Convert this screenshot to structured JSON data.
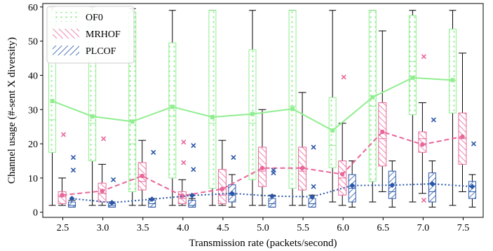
{
  "chart_data": {
    "type": "box",
    "title": "",
    "xlabel": "Transmission rate (packets/second)",
    "ylabel": "Channel usage (#-sent X diversity)",
    "ylim": [
      -1.5,
      61
    ],
    "yticks": [
      0,
      10,
      20,
      30,
      40,
      50,
      60
    ],
    "grid": false,
    "legend_position": "top-left",
    "categories": [
      "2.5",
      "3.0",
      "3.5",
      "4.0",
      "4.5",
      "5.0",
      "5.5",
      "6.0",
      "6.5",
      "7.0",
      "7.5"
    ],
    "series": [
      {
        "name": "OF0",
        "color": "#90ee90",
        "hatch": "dots",
        "marker": "square",
        "mean_line_style": "solid",
        "boxes": [
          {
            "whislo": 2,
            "q1": 17.5,
            "med": 27,
            "q3": 59,
            "whishi": 60
          },
          {
            "whislo": 2,
            "q1": 15,
            "med": 26,
            "q3": 59,
            "whishi": 60
          },
          {
            "whislo": 2,
            "q1": 6,
            "med": 20,
            "q3": 58.5,
            "whishi": 59.5
          },
          {
            "whislo": 2,
            "q1": 10,
            "med": 28,
            "q3": 49.5,
            "whishi": 59
          },
          {
            "whislo": 2,
            "q1": 7,
            "med": 26,
            "q3": 59,
            "whishi": 59
          },
          {
            "whislo": 2,
            "q1": 9.5,
            "med": 26,
            "q3": 47.5,
            "whishi": 59
          },
          {
            "whislo": 2,
            "q1": 7,
            "med": 31,
            "q3": 59,
            "whishi": 59
          },
          {
            "whislo": 3,
            "q1": 13,
            "med": 19.5,
            "q3": 33.5,
            "whishi": 59
          },
          {
            "whislo": 3,
            "q1": 9,
            "med": 31,
            "q3": 59,
            "whishi": 59
          },
          {
            "whislo": 3,
            "q1": 28.5,
            "med": 44,
            "q3": 57.5,
            "whishi": 59
          },
          {
            "whislo": 2,
            "q1": 29,
            "med": 38.5,
            "q3": 53.5,
            "whishi": 59
          }
        ],
        "means": [
          32.5,
          28,
          26.5,
          30.8,
          27.8,
          28.7,
          30.2,
          23.9,
          33.6,
          39.3,
          38.6
        ],
        "fliers": [
          [],
          [],
          [],
          [],
          [],
          [],
          [],
          [],
          [],
          [],
          []
        ]
      },
      {
        "name": "MRHOF",
        "color": "#e8679a",
        "hatch": "backslash",
        "marker": "circle",
        "mean_line_style": "dashed",
        "boxes": [
          {
            "whislo": 2,
            "q1": 2.5,
            "med": 4.5,
            "q3": 6,
            "whishi": 10
          },
          {
            "whislo": 2,
            "q1": 3,
            "med": 5.5,
            "q3": 8.5,
            "whishi": 14
          },
          {
            "whislo": 2,
            "q1": 6.5,
            "med": 9,
            "q3": 14.5,
            "whishi": 21
          },
          {
            "whislo": 2,
            "q1": 2.5,
            "med": 4,
            "q3": 6,
            "whishi": 9.5
          },
          {
            "whislo": 2,
            "q1": 2.5,
            "med": 5,
            "q3": 12.5,
            "whishi": 21
          },
          {
            "whislo": 2,
            "q1": 7.5,
            "med": 12,
            "q3": 19,
            "whishi": 30
          },
          {
            "whislo": 2,
            "q1": 6.5,
            "med": 12,
            "q3": 19,
            "whishi": 35
          },
          {
            "whislo": 2,
            "q1": 5,
            "med": 10,
            "q3": 15,
            "whishi": 26
          },
          {
            "whislo": 6,
            "q1": 13.5,
            "med": 21.5,
            "q3": 32,
            "whishi": 53
          },
          {
            "whislo": 5.5,
            "q1": 17.5,
            "med": 21.5,
            "q3": 23.5,
            "whishi": 32
          },
          {
            "whislo": 6,
            "q1": 14,
            "med": 21.5,
            "q3": 29,
            "whishi": 46.5
          }
        ],
        "means": [
          5,
          6.2,
          10.6,
          4.8,
          6.8,
          12.9,
          12.9,
          11.1,
          23.5,
          19.8,
          22.1
        ],
        "fliers": [
          [
            22.7
          ],
          [
            21.5
          ],
          [],
          [
            20.5,
            14.5
          ],
          [],
          [],
          [],
          [
            39.5
          ],
          [],
          [
            45.5,
            3.5
          ],
          []
        ]
      },
      {
        "name": "PLCOF",
        "color": "#2956a8",
        "hatch": "slash",
        "marker": "diamond",
        "mean_line_style": "dotted",
        "boxes": [
          {
            "whislo": 1.5,
            "q1": 1.5,
            "med": 2,
            "q3": 3,
            "whishi": 3.5
          },
          {
            "whislo": 1.5,
            "q1": 1.5,
            "med": 2,
            "q3": 2.5,
            "whishi": 3
          },
          {
            "whislo": 1.5,
            "q1": 1.5,
            "med": 2.5,
            "q3": 3.5,
            "whishi": 4
          },
          {
            "whislo": 1.5,
            "q1": 1.5,
            "med": 2,
            "q3": 3.5,
            "whishi": 4
          },
          {
            "whislo": 1.5,
            "q1": 3,
            "med": 5,
            "q3": 8,
            "whishi": 11
          },
          {
            "whislo": 1.5,
            "q1": 1.5,
            "med": 2.5,
            "q3": 4,
            "whishi": 5
          },
          {
            "whislo": 1.5,
            "q1": 1.5,
            "med": 2.5,
            "q3": 4,
            "whishi": 5
          },
          {
            "whislo": 1.5,
            "q1": 3,
            "med": 7,
            "q3": 11,
            "whishi": 15
          },
          {
            "whislo": 1.5,
            "q1": 4,
            "med": 6,
            "q3": 12,
            "whishi": 15
          },
          {
            "whislo": 1.5,
            "q1": 3,
            "med": 6,
            "q3": 11.5,
            "whishi": 15
          },
          {
            "whislo": 1.5,
            "q1": 4,
            "med": 6,
            "q3": 9,
            "whishi": 11
          }
        ],
        "means": [
          4,
          2.8,
          3.8,
          4.9,
          5.5,
          4.7,
          4.5,
          7.8,
          7.9,
          8.3,
          7.5
        ],
        "fliers": [
          [
            16,
            12.3
          ],
          [
            9.5
          ],
          [
            17.5
          ],
          [
            19.5,
            12.5
          ],
          [
            16
          ],
          [
            11.5,
            12.3
          ],
          [
            19,
            7.5
          ],
          [],
          [],
          [
            27
          ],
          [
            20
          ]
        ]
      }
    ]
  }
}
